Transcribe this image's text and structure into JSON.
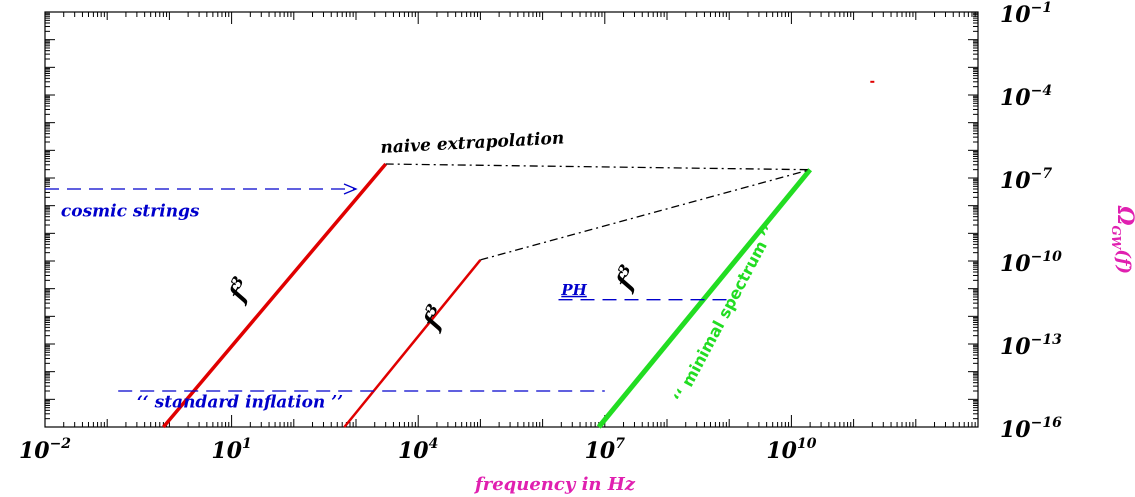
{
  "chart_data": {
    "type": "line",
    "xlabel": "frequency in Hz",
    "ylabel": "Ω",
    "ylabel_sub": "GW",
    "ylabel_suffix": "(f)",
    "x_scale": "log",
    "y_scale": "log",
    "xlim": [
      0.01,
      10000000000000
    ],
    "ylim": [
      1e-16,
      0.1
    ],
    "x_ticks": [
      {
        "base": "10",
        "exp": "−2",
        "value": 0.01
      },
      {
        "base": "10",
        "exp": "1",
        "value": 10
      },
      {
        "base": "10",
        "exp": "4",
        "value": 10000
      },
      {
        "base": "10",
        "exp": "7",
        "value": 10000000
      },
      {
        "base": "10",
        "exp": "10",
        "value": 10000000000
      }
    ],
    "y_ticks": [
      {
        "base": "10",
        "exp": "−1",
        "value": 0.1
      },
      {
        "base": "10",
        "exp": "−4",
        "value": 0.0001
      },
      {
        "base": "10",
        "exp": "−7",
        "value": 1e-07
      },
      {
        "base": "10",
        "exp": "−10",
        "value": 1e-10
      },
      {
        "base": "10",
        "exp": "−13",
        "value": 1e-13
      },
      {
        "base": "10",
        "exp": "−16",
        "value": 1e-16
      }
    ],
    "series": [
      {
        "color": "#e00000",
        "width": 3.5,
        "dash": "",
        "points": [
          [
            0.8,
            1e-16
          ],
          [
            3000,
            3.2e-07
          ]
        ]
      },
      {
        "color": "#e00000",
        "width": 2.5,
        "dash": "",
        "points": [
          [
            650,
            1e-16
          ],
          [
            100000,
            1.1e-10
          ]
        ]
      },
      {
        "color": "#22dd22",
        "width": 5,
        "dash": "",
        "points": [
          [
            8000000,
            1e-16
          ],
          [
            20000000000,
            2e-07
          ]
        ]
      },
      {
        "color": "#000000",
        "width": 1.3,
        "dash": "8,4,2,4",
        "points": [
          [
            3000,
            3.2e-07
          ],
          [
            20000000000,
            2e-07
          ]
        ]
      },
      {
        "color": "#000000",
        "width": 1.3,
        "dash": "8,4,2,4",
        "points": [
          [
            100000,
            1.1e-10
          ],
          [
            20000000000,
            2e-07
          ]
        ]
      },
      {
        "color": "#0000cc",
        "width": 1.3,
        "dash": "14,8",
        "points": [
          [
            0.15,
            2e-15
          ],
          [
            10000000,
            2e-15
          ]
        ]
      },
      {
        "color": "#0000cc",
        "width": 1.3,
        "dash": "14,8",
        "points": [
          [
            1800000,
            4e-12
          ],
          [
            1000000000,
            4e-12
          ]
        ]
      },
      {
        "color": "#0000cc",
        "width": 1.3,
        "dash": "14,8",
        "points": [
          [
            0.01,
            4e-08
          ],
          [
            1000,
            4e-08
          ]
        ]
      }
    ],
    "arrow": {
      "color": "#0000cc",
      "x": 1000,
      "y": 4e-08
    },
    "red_mark": {
      "color": "#e00000",
      "x": 200000000000,
      "y": 0.0003
    },
    "annotations": [
      {
        "text": "naive extrapolation",
        "x": 2500,
        "y": 8e-07,
        "size": 17,
        "color": "#000000",
        "rotate": -3,
        "anchor": "start",
        "style": "serif"
      },
      {
        "text": "cosmic strings",
        "x": 0.018,
        "y": 4e-09,
        "size": 17,
        "color": "#0000cc",
        "rotate": 0,
        "anchor": "start",
        "style": "serif"
      },
      {
        "text": "‘‘ standard inflation ’’",
        "x": 0.3,
        "y": 5e-16,
        "size": 17,
        "color": "#0000cc",
        "rotate": 0,
        "anchor": "start",
        "style": "serif"
      },
      {
        "text": "PH",
        "x": 2000000,
        "y": 6e-12,
        "size": 15,
        "color": "#0000cc",
        "rotate": 0,
        "anchor": "start",
        "style": "serif",
        "underline": true
      },
      {
        "text": "‘‘ minimal spectrum ’’",
        "x": 1000000000,
        "y": 1e-12,
        "size": 16,
        "color": "#22dd22",
        "rotate": -62,
        "anchor": "middle",
        "style": "sans"
      }
    ],
    "f3_labels": [
      {
        "base": "f",
        "exp": "3",
        "x": 15,
        "y": 3e-12,
        "color": "#000000"
      },
      {
        "base": "f",
        "exp": "3",
        "x": 20000,
        "y": 3e-13,
        "color": "#000000"
      },
      {
        "base": "f",
        "exp": "3",
        "x": 25000000,
        "y": 8e-12,
        "color": "#000000"
      }
    ],
    "colors": {
      "xlabel": "#e020b0",
      "ylabel": "#e020b0"
    }
  }
}
